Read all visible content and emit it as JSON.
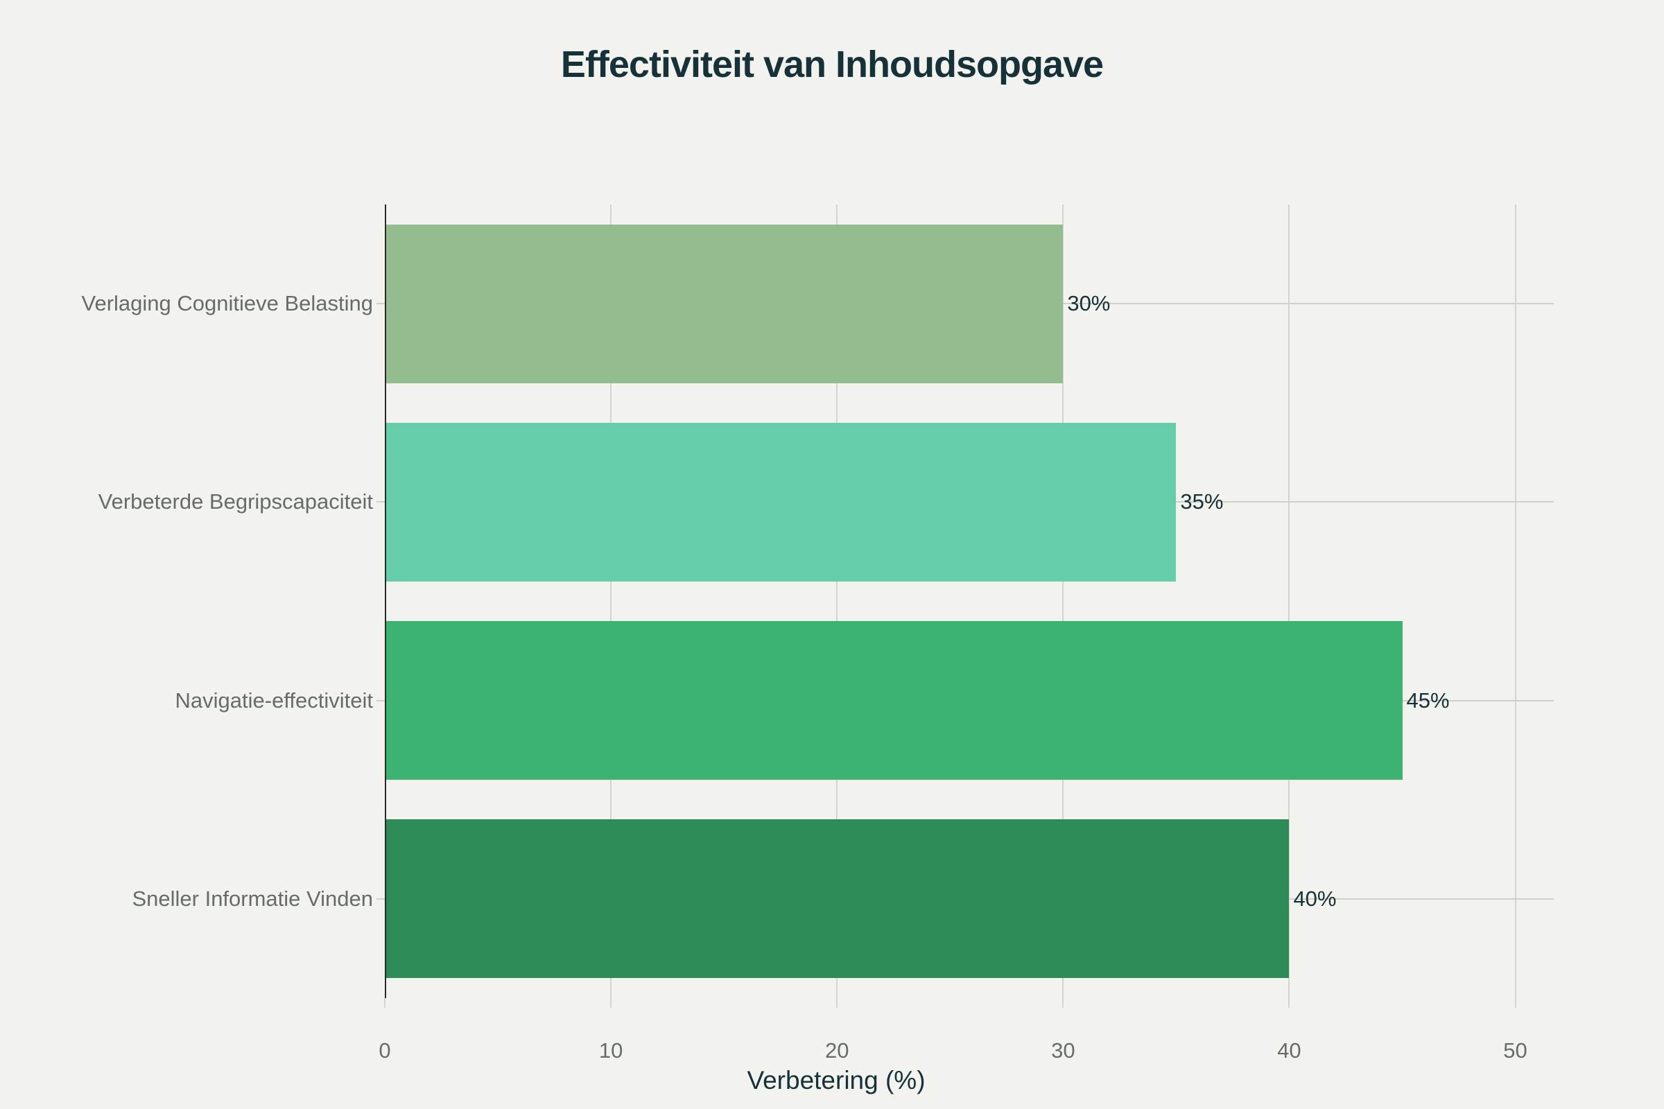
{
  "chart_data": {
    "type": "bar",
    "orientation": "horizontal",
    "title": "Effectiviteit van Inhoudsopgave",
    "xlabel": "Verbetering (%)",
    "ylabel": "",
    "xlim": [
      0,
      51.7
    ],
    "x_ticks": [
      "0",
      "10",
      "20",
      "30",
      "40",
      "50"
    ],
    "grid": true,
    "legend": "none",
    "categories": [
      "Verlaging Cognitieve Belasting",
      "Verbeterde Begripscapaciteit",
      "Navigatie-effectiviteit",
      "Sneller Informatie Vinden"
    ],
    "values": [
      30,
      35,
      45,
      40
    ],
    "data_labels": [
      "30%",
      "35%",
      "45%",
      "40%"
    ],
    "colors": [
      "#94bd8f",
      "#66cdaa",
      "#3db372",
      "#2e8b58"
    ]
  },
  "title": "Effectiviteit van Inhoudsopgave",
  "x_axis": {
    "title": "Verbetering (%)",
    "ticks": [
      "0",
      "10",
      "20",
      "30",
      "40",
      "50"
    ]
  },
  "bars": [
    {
      "label": "Verlaging Cognitieve Belasting",
      "value": 30,
      "text": "30%",
      "color": "#94bd8f"
    },
    {
      "label": "Verbeterde Begripscapaciteit",
      "value": 35,
      "text": "35%",
      "color": "#66cdaa"
    },
    {
      "label": "Navigatie-effectiviteit",
      "value": 45,
      "text": "45%",
      "color": "#3db372"
    },
    {
      "label": "Sneller Informatie Vinden",
      "value": 40,
      "text": "40%",
      "color": "#2e8b58"
    }
  ]
}
